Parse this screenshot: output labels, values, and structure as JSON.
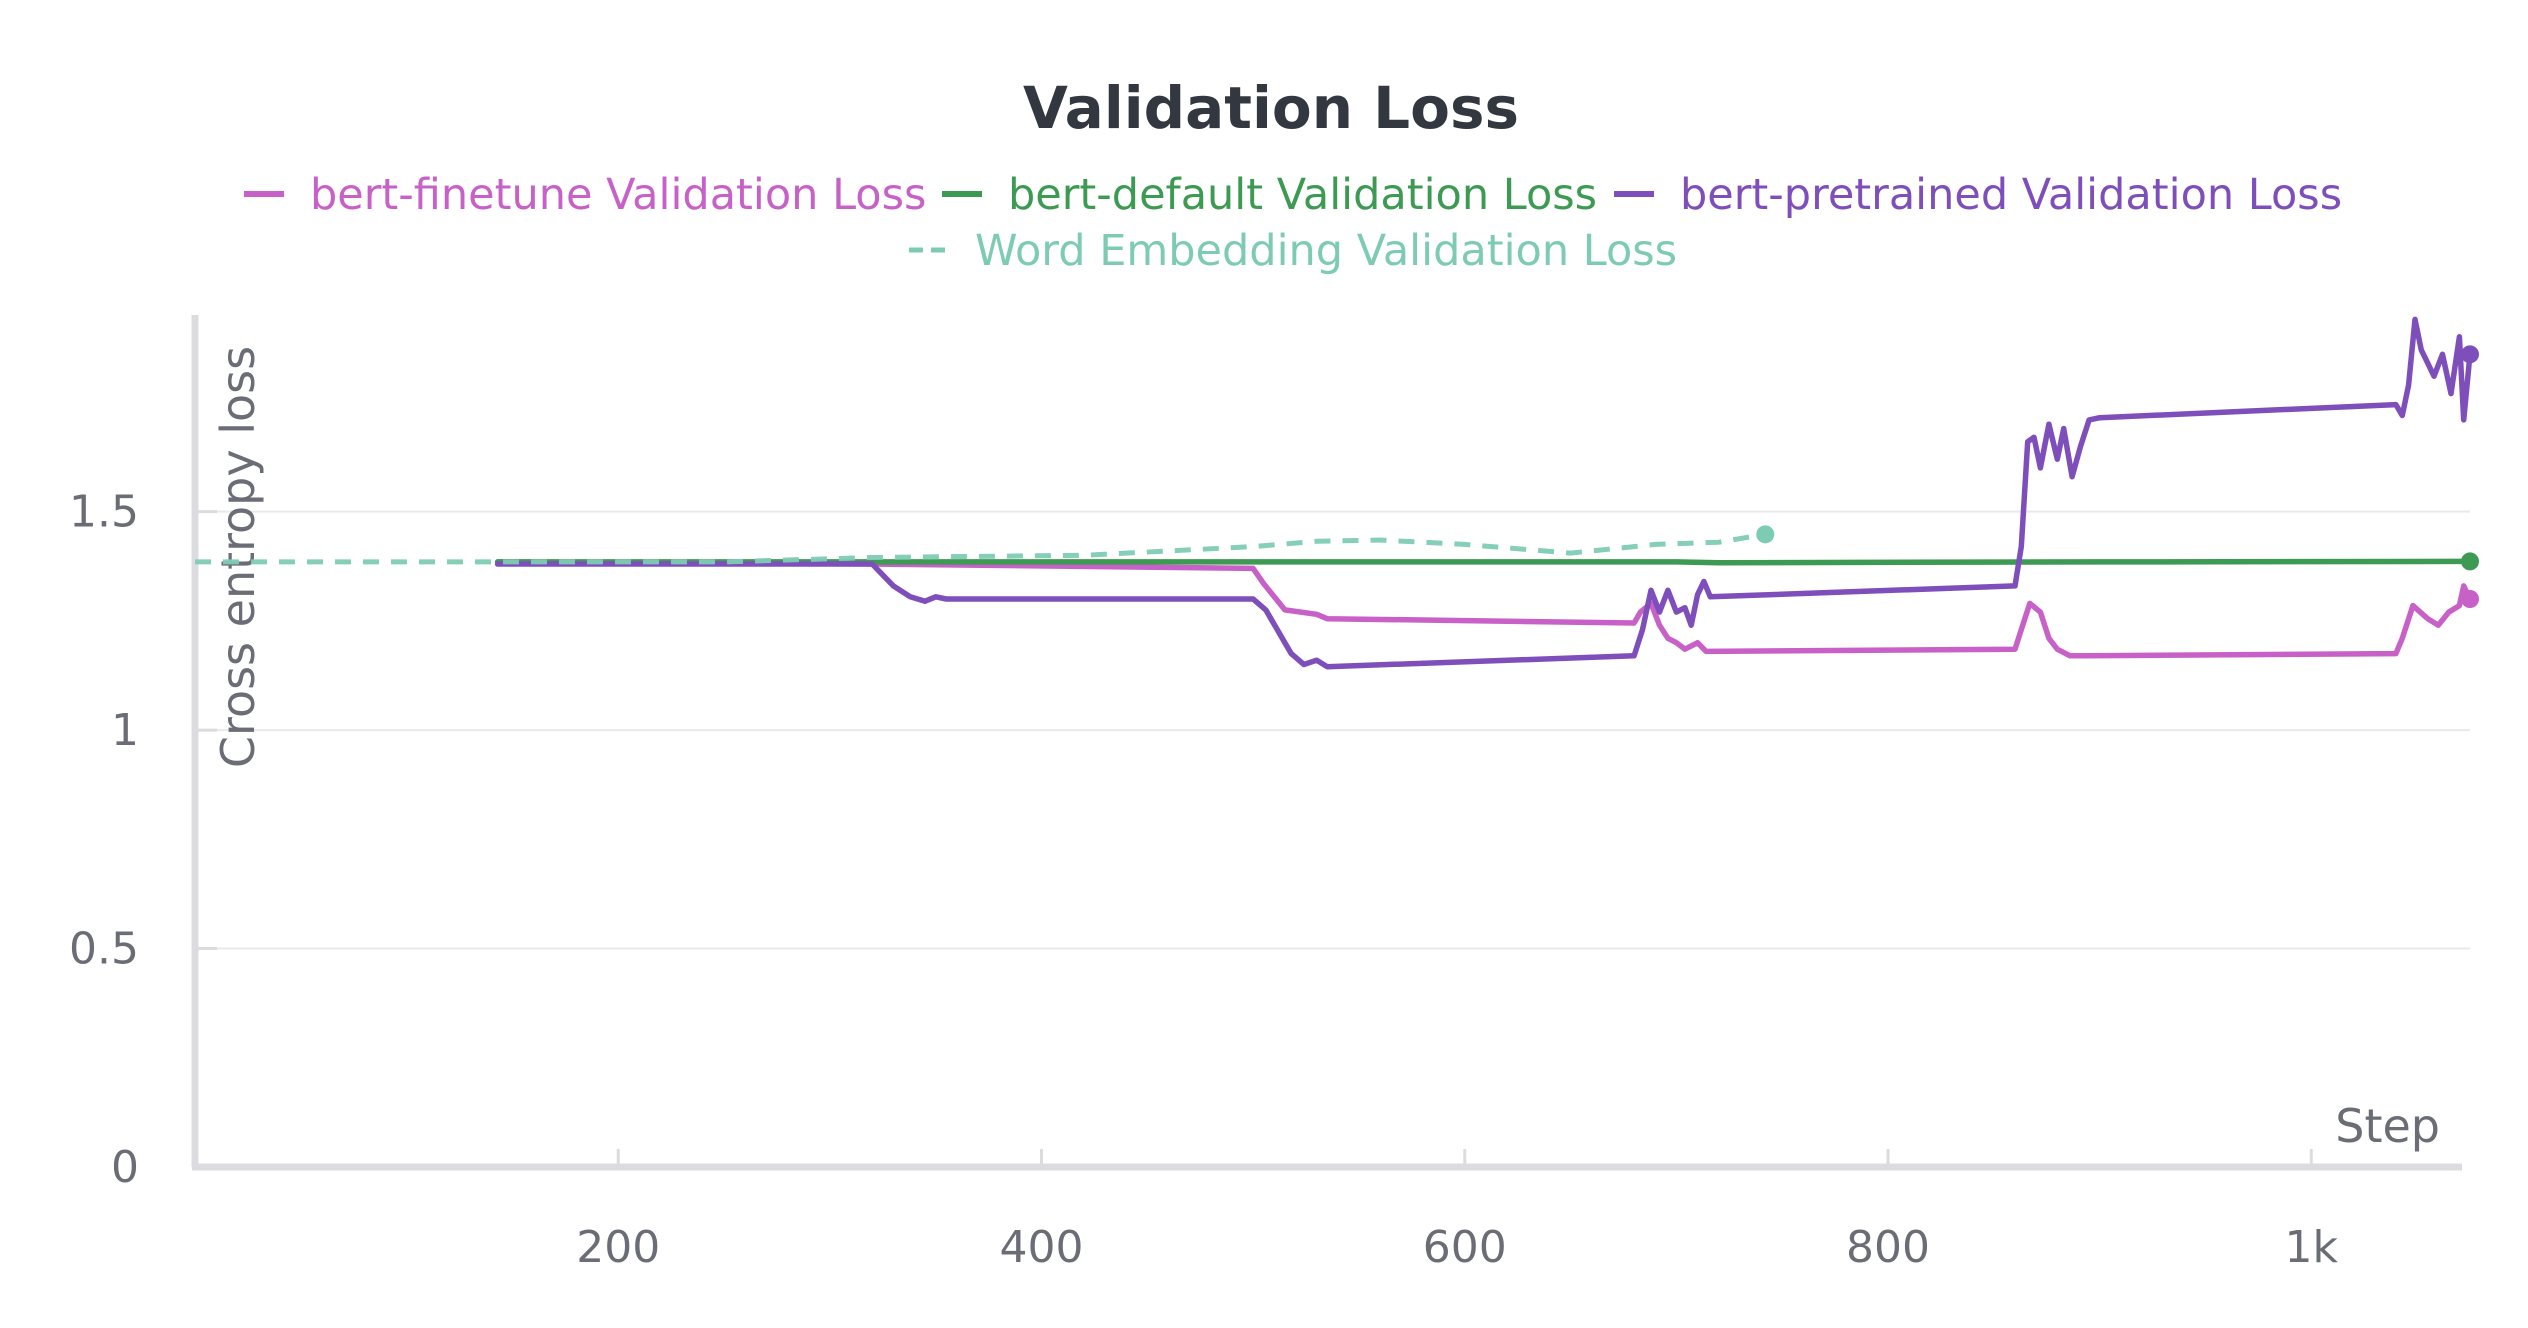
{
  "chart_data": {
    "type": "line",
    "title": "Validation Loss",
    "xlabel": "Step",
    "ylabel": "Cross entropy loss",
    "xlim": [
      0,
      1075
    ],
    "ylim": [
      0,
      1.95
    ],
    "x_ticks": [
      {
        "value": 200,
        "label": "200"
      },
      {
        "value": 400,
        "label": "400"
      },
      {
        "value": 600,
        "label": "600"
      },
      {
        "value": 800,
        "label": "800"
      },
      {
        "value": 1000,
        "label": "1k"
      }
    ],
    "y_ticks": [
      {
        "value": 0,
        "label": "0"
      },
      {
        "value": 0.5,
        "label": "0.5"
      },
      {
        "value": 1,
        "label": "1"
      },
      {
        "value": 1.5,
        "label": "1.5"
      }
    ],
    "grid": true,
    "legend_position": "top-center",
    "series": [
      {
        "name": "bert-finetune Validation Loss",
        "color": "#c761c7",
        "dash": false,
        "end_marker": true,
        "points": [
          [
            143,
            1.385
          ],
          [
            320,
            1.38
          ],
          [
            500,
            1.37
          ],
          [
            505,
            1.335
          ],
          [
            515,
            1.275
          ],
          [
            530,
            1.265
          ],
          [
            535,
            1.255
          ],
          [
            680,
            1.245
          ],
          [
            683,
            1.27
          ],
          [
            688,
            1.29
          ],
          [
            692,
            1.24
          ],
          [
            696,
            1.21
          ],
          [
            700,
            1.2
          ],
          [
            704,
            1.185
          ],
          [
            710,
            1.2
          ],
          [
            714,
            1.18
          ],
          [
            860,
            1.185
          ],
          [
            863,
            1.23
          ],
          [
            867,
            1.29
          ],
          [
            872,
            1.27
          ],
          [
            876,
            1.21
          ],
          [
            880,
            1.185
          ],
          [
            886,
            1.17
          ],
          [
            895,
            1.17
          ],
          [
            1040,
            1.175
          ],
          [
            1043,
            1.21
          ],
          [
            1048,
            1.285
          ],
          [
            1055,
            1.255
          ],
          [
            1060,
            1.24
          ],
          [
            1065,
            1.27
          ],
          [
            1070,
            1.285
          ],
          [
            1072,
            1.33
          ],
          [
            1075,
            1.3
          ]
        ]
      },
      {
        "name": "bert-default Validation Loss",
        "color": "#3c9a52",
        "dash": false,
        "end_marker": true,
        "points": [
          [
            143,
            1.385
          ],
          [
            500,
            1.385
          ],
          [
            700,
            1.385
          ],
          [
            720,
            1.383
          ],
          [
            900,
            1.385
          ],
          [
            1075,
            1.386
          ]
        ]
      },
      {
        "name": "bert-pretrained Validation Loss",
        "color": "#7e4fbb",
        "dash": false,
        "end_marker": true,
        "points": [
          [
            143,
            1.38
          ],
          [
            320,
            1.38
          ],
          [
            324,
            1.36
          ],
          [
            330,
            1.33
          ],
          [
            338,
            1.305
          ],
          [
            345,
            1.295
          ],
          [
            350,
            1.305
          ],
          [
            355,
            1.3
          ],
          [
            500,
            1.3
          ],
          [
            506,
            1.275
          ],
          [
            512,
            1.225
          ],
          [
            518,
            1.175
          ],
          [
            524,
            1.15
          ],
          [
            530,
            1.16
          ],
          [
            535,
            1.145
          ],
          [
            680,
            1.17
          ],
          [
            684,
            1.23
          ],
          [
            688,
            1.32
          ],
          [
            692,
            1.27
          ],
          [
            696,
            1.32
          ],
          [
            700,
            1.27
          ],
          [
            704,
            1.28
          ],
          [
            707,
            1.24
          ],
          [
            710,
            1.31
          ],
          [
            713,
            1.34
          ],
          [
            716,
            1.305
          ],
          [
            860,
            1.33
          ],
          [
            863,
            1.42
          ],
          [
            866,
            1.66
          ],
          [
            869,
            1.67
          ],
          [
            872,
            1.6
          ],
          [
            876,
            1.7
          ],
          [
            880,
            1.62
          ],
          [
            883,
            1.69
          ],
          [
            887,
            1.58
          ],
          [
            891,
            1.65
          ],
          [
            895,
            1.71
          ],
          [
            900,
            1.715
          ],
          [
            1040,
            1.745
          ],
          [
            1043,
            1.72
          ],
          [
            1046,
            1.79
          ],
          [
            1049,
            1.94
          ],
          [
            1052,
            1.87
          ],
          [
            1055,
            1.84
          ],
          [
            1058,
            1.81
          ],
          [
            1062,
            1.86
          ],
          [
            1066,
            1.77
          ],
          [
            1070,
            1.9
          ],
          [
            1072,
            1.71
          ],
          [
            1075,
            1.86
          ]
        ]
      },
      {
        "name": "Word Embedding Validation Loss",
        "color": "#7ecbb4",
        "dash": true,
        "end_marker": true,
        "points": [
          [
            0,
            1.385
          ],
          [
            250,
            1.385
          ],
          [
            320,
            1.395
          ],
          [
            420,
            1.4
          ],
          [
            500,
            1.42
          ],
          [
            530,
            1.432
          ],
          [
            560,
            1.435
          ],
          [
            600,
            1.425
          ],
          [
            650,
            1.405
          ],
          [
            690,
            1.425
          ],
          [
            720,
            1.43
          ],
          [
            742,
            1.448
          ]
        ]
      }
    ]
  }
}
